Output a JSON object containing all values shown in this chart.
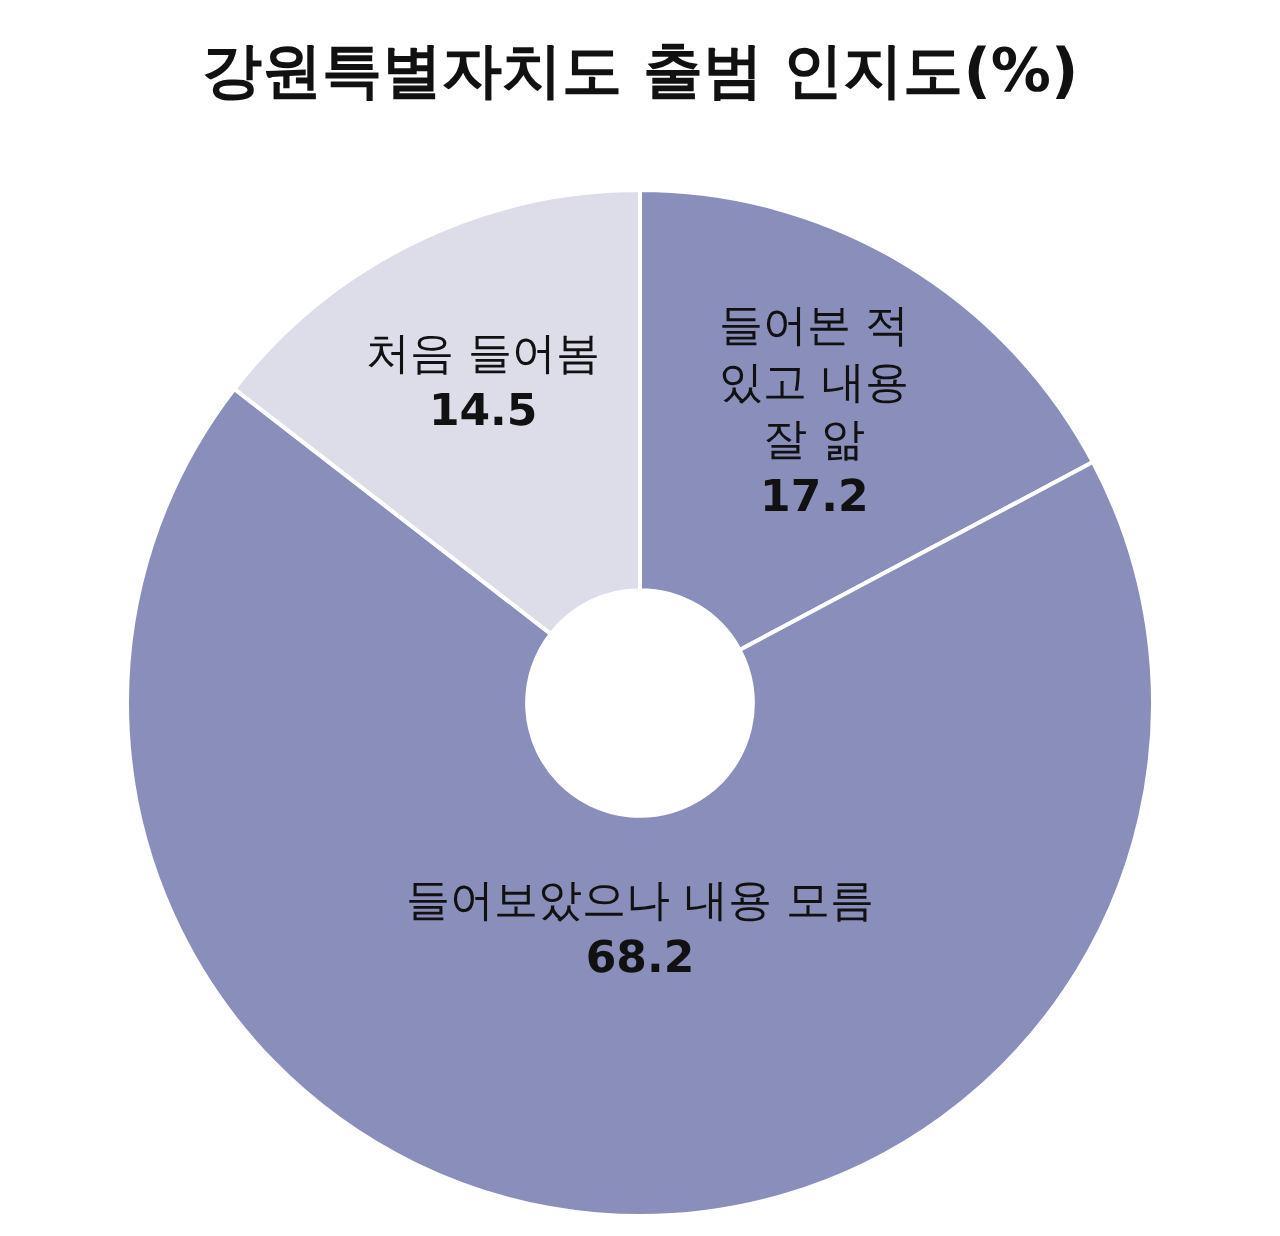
{
  "chart_data": {
    "type": "donut",
    "title": "강원특별자치도 출범 인지도(%)",
    "categories": [
      "들어본 적 있고 내용 잘 앎",
      "들어보았으나 내용 모름",
      "처음 들어봄"
    ],
    "values": [
      17.2,
      68.2,
      14.5
    ],
    "colors": [
      "#8a8ebb",
      "#8a8ebb",
      "#dcdde9"
    ],
    "data_labels": true,
    "legend": false
  }
}
